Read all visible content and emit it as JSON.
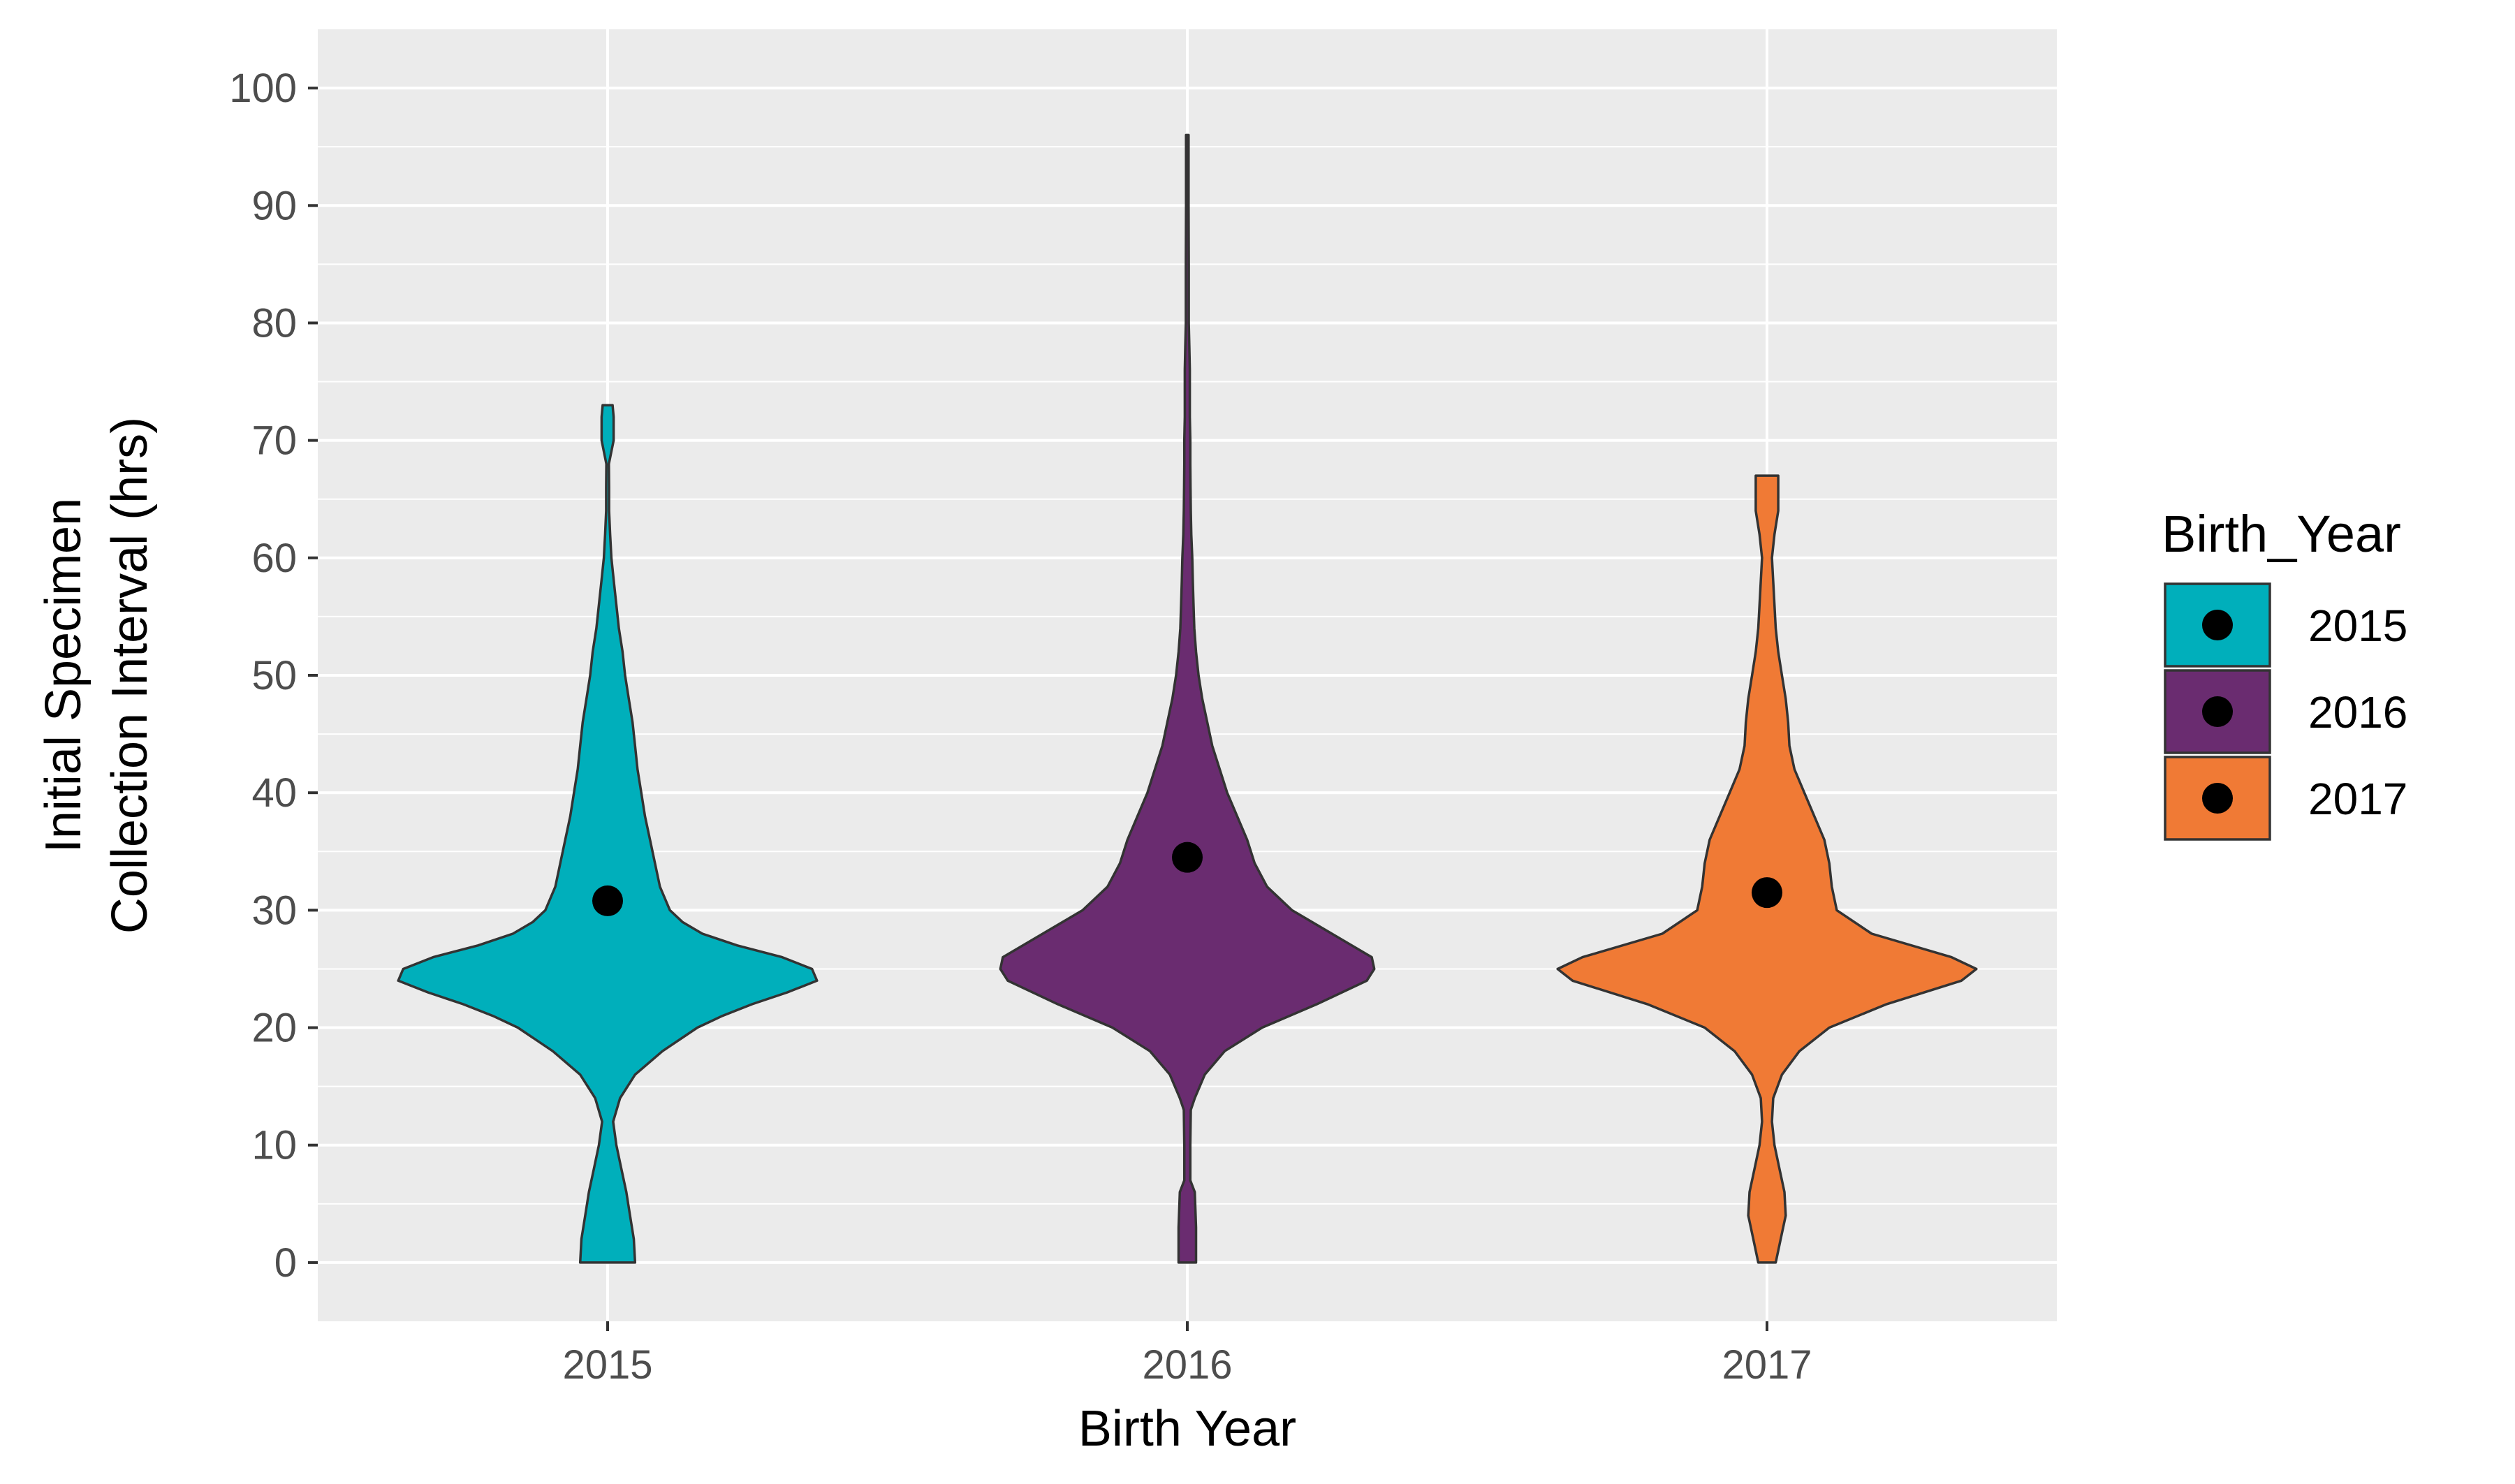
{
  "chart_data": {
    "type": "violin",
    "xlabel": "Birth Year",
    "ylabel_lines": [
      "Initial Specimen",
      "Collection Interval (hrs)"
    ],
    "ylim": [
      -5,
      105
    ],
    "yticks": [
      0,
      10,
      20,
      30,
      40,
      50,
      60,
      70,
      80,
      90,
      100
    ],
    "ytick_labels": [
      "0",
      "10",
      "20",
      "30",
      "40",
      "50",
      "60",
      "70",
      "80",
      "90",
      "100"
    ],
    "categories": [
      "2015",
      "2016",
      "2017"
    ],
    "grid": true,
    "legend": {
      "title": "Birth_Year",
      "position": "right",
      "entries": [
        "2015",
        "2016",
        "2017"
      ]
    },
    "series": [
      {
        "name": "2015",
        "color": "#00AFBB",
        "mean": 30.8,
        "y_range": [
          0,
          73
        ],
        "half_width_profile": [
          [
            0,
            0.11
          ],
          [
            2,
            0.105
          ],
          [
            4,
            0.09
          ],
          [
            6,
            0.075
          ],
          [
            8,
            0.055
          ],
          [
            10,
            0.035
          ],
          [
            12,
            0.022
          ],
          [
            14,
            0.05
          ],
          [
            16,
            0.11
          ],
          [
            18,
            0.22
          ],
          [
            20,
            0.36
          ],
          [
            21,
            0.46
          ],
          [
            22,
            0.58
          ],
          [
            23,
            0.72
          ],
          [
            24,
            0.84
          ],
          [
            25,
            0.82
          ],
          [
            26,
            0.7
          ],
          [
            27,
            0.52
          ],
          [
            28,
            0.38
          ],
          [
            29,
            0.3
          ],
          [
            30,
            0.25
          ],
          [
            32,
            0.21
          ],
          [
            34,
            0.19
          ],
          [
            36,
            0.17
          ],
          [
            38,
            0.15
          ],
          [
            40,
            0.135
          ],
          [
            42,
            0.12
          ],
          [
            44,
            0.11
          ],
          [
            46,
            0.1
          ],
          [
            48,
            0.085
          ],
          [
            50,
            0.07
          ],
          [
            52,
            0.06
          ],
          [
            54,
            0.045
          ],
          [
            56,
            0.035
          ],
          [
            58,
            0.025
          ],
          [
            60,
            0.015
          ],
          [
            62,
            0.01
          ],
          [
            64,
            0.006
          ],
          [
            66,
            0.006
          ],
          [
            68,
            0.005
          ],
          [
            70,
            0.024
          ],
          [
            72,
            0.024
          ],
          [
            73,
            0.02
          ]
        ]
      },
      {
        "name": "2016",
        "color": "#6A2C70",
        "mean": 34.5,
        "y_range": [
          0,
          96
        ],
        "half_width_profile": [
          [
            0,
            0.035
          ],
          [
            3,
            0.035
          ],
          [
            6,
            0.03
          ],
          [
            7,
            0.012
          ],
          [
            10,
            0.012
          ],
          [
            13,
            0.014
          ],
          [
            14,
            0.03
          ],
          [
            16,
            0.07
          ],
          [
            18,
            0.15
          ],
          [
            20,
            0.3
          ],
          [
            22,
            0.52
          ],
          [
            24,
            0.72
          ],
          [
            25,
            0.75
          ],
          [
            26,
            0.74
          ],
          [
            28,
            0.58
          ],
          [
            30,
            0.42
          ],
          [
            32,
            0.32
          ],
          [
            34,
            0.27
          ],
          [
            36,
            0.24
          ],
          [
            38,
            0.2
          ],
          [
            40,
            0.16
          ],
          [
            42,
            0.13
          ],
          [
            44,
            0.1
          ],
          [
            46,
            0.08
          ],
          [
            48,
            0.06
          ],
          [
            50,
            0.045
          ],
          [
            52,
            0.035
          ],
          [
            54,
            0.028
          ],
          [
            56,
            0.025
          ],
          [
            58,
            0.022
          ],
          [
            60,
            0.02
          ],
          [
            62,
            0.016
          ],
          [
            64,
            0.014
          ],
          [
            66,
            0.013
          ],
          [
            68,
            0.012
          ],
          [
            70,
            0.012
          ],
          [
            72,
            0.01
          ],
          [
            74,
            0.01
          ],
          [
            76,
            0.01
          ],
          [
            78,
            0.008
          ],
          [
            80,
            0.006
          ],
          [
            85,
            0.006
          ],
          [
            90,
            0.005
          ],
          [
            96,
            0.005
          ]
        ]
      },
      {
        "name": "2017",
        "color": "#F07A35",
        "mean": 31.5,
        "y_range": [
          0,
          67
        ],
        "half_width_profile": [
          [
            0,
            0.035
          ],
          [
            2,
            0.055
          ],
          [
            4,
            0.075
          ],
          [
            6,
            0.07
          ],
          [
            8,
            0.05
          ],
          [
            10,
            0.03
          ],
          [
            12,
            0.02
          ],
          [
            14,
            0.025
          ],
          [
            16,
            0.06
          ],
          [
            18,
            0.13
          ],
          [
            20,
            0.25
          ],
          [
            22,
            0.48
          ],
          [
            24,
            0.78
          ],
          [
            25,
            0.84
          ],
          [
            26,
            0.74
          ],
          [
            28,
            0.42
          ],
          [
            30,
            0.28
          ],
          [
            32,
            0.26
          ],
          [
            34,
            0.25
          ],
          [
            36,
            0.23
          ],
          [
            38,
            0.19
          ],
          [
            40,
            0.15
          ],
          [
            42,
            0.11
          ],
          [
            44,
            0.09
          ],
          [
            46,
            0.085
          ],
          [
            48,
            0.075
          ],
          [
            50,
            0.06
          ],
          [
            52,
            0.045
          ],
          [
            54,
            0.035
          ],
          [
            56,
            0.03
          ],
          [
            58,
            0.025
          ],
          [
            60,
            0.02
          ],
          [
            62,
            0.03
          ],
          [
            64,
            0.045
          ],
          [
            66,
            0.045
          ],
          [
            67,
            0.045
          ]
        ]
      }
    ]
  }
}
